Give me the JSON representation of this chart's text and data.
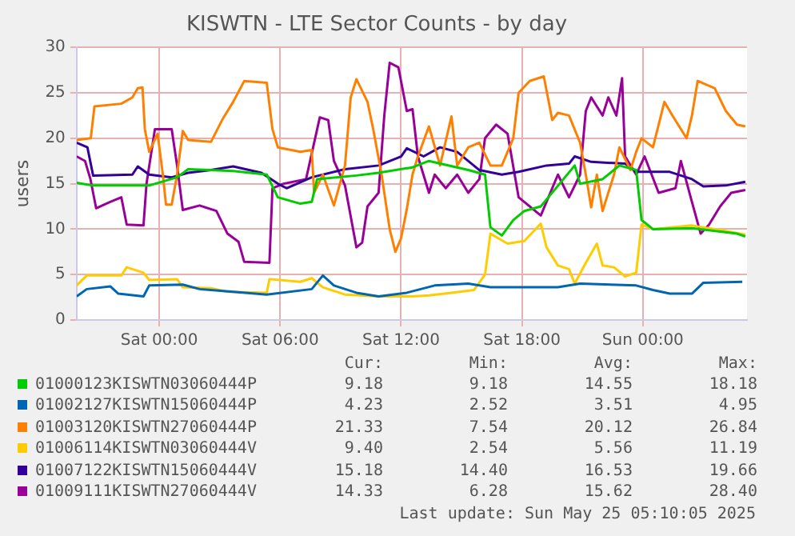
{
  "chart_data": {
    "type": "line",
    "title": "KISWTN - LTE Sector Counts - by day",
    "ylabel": "users",
    "xlim": [
      "2025-05-23T19:54",
      "2025-05-25T05:10"
    ],
    "xticks": [
      {
        "value": "2025-05-24T00:00",
        "label": "Sat 00:00"
      },
      {
        "value": "2025-05-24T06:00",
        "label": "Sat 06:00"
      },
      {
        "value": "2025-05-24T12:00",
        "label": "Sat 12:00"
      },
      {
        "value": "2025-05-24T18:00",
        "label": "Sat 18:00"
      },
      {
        "value": "2025-05-25T00:00",
        "label": "Sun 00:00"
      }
    ],
    "ylim": [
      0,
      30
    ],
    "yticks": [
      0,
      5,
      10,
      15,
      20,
      25,
      30
    ],
    "grid": true,
    "legend": "bottom",
    "marker": "none",
    "line_style": "solid",
    "series": [
      {
        "name": "01000123KISWTN03060444P",
        "color": "#00cc00",
        "x": [
          "2025-05-23T19:54",
          "2025-05-23T20:42",
          "2025-05-23T23:30",
          "2025-05-24T00:53",
          "2025-05-24T01:26",
          "2025-05-24T03:40",
          "2025-05-24T05:20",
          "2025-05-24T05:53",
          "2025-05-24T07:00",
          "2025-05-24T07:34",
          "2025-05-24T07:50",
          "2025-05-24T09:47",
          "2025-05-24T10:53",
          "2025-05-24T12:34",
          "2025-05-24T13:23",
          "2025-05-24T15:20",
          "2025-05-24T16:10",
          "2025-05-24T16:26",
          "2025-05-24T17:00",
          "2025-05-24T17:34",
          "2025-05-24T18:07",
          "2025-05-24T18:56",
          "2025-05-24T20:37",
          "2025-05-24T20:53",
          "2025-05-24T22:00",
          "2025-05-24T22:50",
          "2025-05-24T23:40",
          "2025-05-24T23:56",
          "2025-05-25T00:30",
          "2025-05-25T02:26",
          "2025-05-25T04:40",
          "2025-05-25T05:05"
        ],
        "values": [
          15.1,
          14.8,
          14.8,
          15.7,
          16.6,
          16.4,
          16.0,
          13.5,
          12.8,
          13.0,
          15.5,
          15.9,
          16.2,
          16.8,
          17.5,
          16.5,
          16.0,
          10.2,
          9.3,
          11.0,
          12.0,
          12.5,
          17.0,
          15.0,
          15.5,
          17.0,
          16.5,
          11.0,
          10.0,
          10.1,
          9.5,
          9.2
        ]
      },
      {
        "name": "01002127KISWTN15060444P",
        "color": "#0066b3",
        "x": [
          "2025-05-23T19:54",
          "2025-05-23T20:24",
          "2025-05-23T21:34",
          "2025-05-23T21:58",
          "2025-05-23T23:13",
          "2025-05-23T23:30",
          "2025-05-24T01:10",
          "2025-05-24T02:00",
          "2025-05-24T03:40",
          "2025-05-24T05:20",
          "2025-05-24T07:34",
          "2025-05-24T08:07",
          "2025-05-24T08:40",
          "2025-05-24T09:47",
          "2025-05-24T10:53",
          "2025-05-24T12:17",
          "2025-05-24T13:40",
          "2025-05-24T15:20",
          "2025-05-24T16:26",
          "2025-05-24T19:47",
          "2025-05-24T20:53",
          "2025-05-24T23:40",
          "2025-05-25T00:30",
          "2025-05-25T01:20",
          "2025-05-25T02:26",
          "2025-05-25T03:00",
          "2025-05-25T04:56"
        ],
        "values": [
          2.6,
          3.4,
          3.7,
          2.9,
          2.6,
          3.8,
          3.9,
          3.4,
          3.1,
          2.8,
          3.4,
          4.9,
          3.8,
          3.0,
          2.6,
          3.0,
          3.8,
          4.0,
          3.6,
          3.6,
          4.0,
          3.8,
          3.3,
          2.9,
          2.9,
          4.1,
          4.2
        ]
      },
      {
        "name": "01003120KISWTN27060444P",
        "color": "#ff8000",
        "x": [
          "2025-05-23T19:54",
          "2025-05-23T20:36",
          "2025-05-23T20:47",
          "2025-05-23T22:07",
          "2025-05-23T22:40",
          "2025-05-23T22:56",
          "2025-05-23T23:10",
          "2025-05-23T23:17",
          "2025-05-23T23:30",
          "2025-05-23T23:55",
          "2025-05-24T00:11",
          "2025-05-24T00:20",
          "2025-05-24T00:37",
          "2025-05-24T00:53",
          "2025-05-24T01:10",
          "2025-05-24T01:26",
          "2025-05-24T02:34",
          "2025-05-24T03:07",
          "2025-05-24T03:40",
          "2025-05-24T04:13",
          "2025-05-24T05:20",
          "2025-05-24T05:37",
          "2025-05-24T05:53",
          "2025-05-24T07:00",
          "2025-05-24T07:34",
          "2025-05-24T07:41",
          "2025-05-24T08:07",
          "2025-05-24T08:40",
          "2025-05-24T09:13",
          "2025-05-24T09:30",
          "2025-05-24T09:47",
          "2025-05-24T10:20",
          "2025-05-24T10:37",
          "2025-05-24T11:02",
          "2025-05-24T11:26",
          "2025-05-24T11:43",
          "2025-05-24T12:00",
          "2025-05-24T12:17",
          "2025-05-24T12:34",
          "2025-05-24T12:50",
          "2025-05-24T13:23",
          "2025-05-24T13:56",
          "2025-05-24T14:30",
          "2025-05-24T14:47",
          "2025-05-24T15:20",
          "2025-05-24T15:53",
          "2025-05-24T16:26",
          "2025-05-24T17:00",
          "2025-05-24T17:34",
          "2025-05-24T17:50",
          "2025-05-24T18:23",
          "2025-05-24T19:05",
          "2025-05-24T19:30",
          "2025-05-24T19:47",
          "2025-05-24T20:20",
          "2025-05-24T20:53",
          "2025-05-24T21:10",
          "2025-05-24T21:26",
          "2025-05-24T21:43",
          "2025-05-24T22:00",
          "2025-05-24T22:34",
          "2025-05-24T22:50",
          "2025-05-24T23:23",
          "2025-05-24T23:40",
          "2025-05-24T23:56",
          "2025-05-25T00:30",
          "2025-05-25T01:04",
          "2025-05-25T01:28",
          "2025-05-25T02:10",
          "2025-05-25T02:26",
          "2025-05-25T02:43",
          "2025-05-25T03:34",
          "2025-05-25T04:07",
          "2025-05-25T04:40",
          "2025-05-25T05:05"
        ],
        "values": [
          19.8,
          20.0,
          23.5,
          23.8,
          24.5,
          25.5,
          25.6,
          21.0,
          18.5,
          20.5,
          15.9,
          12.7,
          12.7,
          16.0,
          20.8,
          19.8,
          19.6,
          22.0,
          24.0,
          26.3,
          26.1,
          21.0,
          19.0,
          18.5,
          18.7,
          14.0,
          16.0,
          12.6,
          17.0,
          24.5,
          26.5,
          24.0,
          21.0,
          16.0,
          10.0,
          7.5,
          9.0,
          12.2,
          16.0,
          18.0,
          21.3,
          17.0,
          22.4,
          17.0,
          19.0,
          19.5,
          17.0,
          17.0,
          20.0,
          25.0,
          26.3,
          26.8,
          22.0,
          22.8,
          22.5,
          19.5,
          16.0,
          12.4,
          16.0,
          12.0,
          16.0,
          19.0,
          16.5,
          18.5,
          20.0,
          19.0,
          24.0,
          22.5,
          20.0,
          22.5,
          26.3,
          25.5,
          23.0,
          21.5,
          21.3
        ]
      },
      {
        "name": "01006114KISWTN03060444V",
        "color": "#ffcc00",
        "x": [
          "2025-05-23T19:54",
          "2025-05-23T20:24",
          "2025-05-23T22:07",
          "2025-05-23T22:23",
          "2025-05-23T23:13",
          "2025-05-23T23:30",
          "2025-05-24T00:53",
          "2025-05-24T01:10",
          "2025-05-24T02:34",
          "2025-05-24T03:23",
          "2025-05-24T05:20",
          "2025-05-24T05:28",
          "2025-05-24T07:00",
          "2025-05-24T07:34",
          "2025-05-24T08:07",
          "2025-05-24T09:13",
          "2025-05-24T10:53",
          "2025-05-24T12:34",
          "2025-05-24T13:23",
          "2025-05-24T14:30",
          "2025-05-24T15:37",
          "2025-05-24T16:10",
          "2025-05-24T16:26",
          "2025-05-24T17:17",
          "2025-05-24T18:07",
          "2025-05-24T18:56",
          "2025-05-24T19:13",
          "2025-05-24T19:47",
          "2025-05-24T20:20",
          "2025-05-24T20:37",
          "2025-05-24T21:10",
          "2025-05-24T21:43",
          "2025-05-24T22:00",
          "2025-05-24T22:34",
          "2025-05-24T23:07",
          "2025-05-24T23:40",
          "2025-05-24T23:56",
          "2025-05-25T00:30",
          "2025-05-25T02:26",
          "2025-05-25T03:50",
          "2025-05-25T05:05"
        ],
        "values": [
          3.8,
          4.9,
          4.9,
          5.8,
          5.2,
          4.4,
          4.5,
          3.6,
          3.5,
          3.1,
          3.0,
          4.5,
          4.2,
          4.6,
          3.6,
          2.8,
          2.6,
          2.6,
          2.7,
          3.0,
          3.3,
          5.0,
          9.5,
          8.4,
          8.7,
          10.6,
          8.0,
          6.0,
          5.6,
          4.0,
          6.3,
          8.4,
          6.0,
          5.8,
          4.8,
          5.2,
          10.5,
          10.0,
          10.4,
          9.9,
          9.4
        ]
      },
      {
        "name": "01007122KISWTN15060444V",
        "color": "#330099",
        "x": [
          "2025-05-23T19:54",
          "2025-05-23T20:26",
          "2025-05-23T20:43",
          "2025-05-23T22:40",
          "2025-05-23T22:56",
          "2025-05-23T23:30",
          "2025-05-24T00:37",
          "2025-05-24T01:26",
          "2025-05-24T02:34",
          "2025-05-24T03:40",
          "2025-05-24T05:04",
          "2025-05-24T05:53",
          "2025-05-24T06:19",
          "2025-05-24T07:34",
          "2025-05-24T09:13",
          "2025-05-24T10:53",
          "2025-05-24T12:00",
          "2025-05-24T12:17",
          "2025-05-24T13:07",
          "2025-05-24T13:56",
          "2025-05-24T14:47",
          "2025-05-24T15:53",
          "2025-05-24T17:00",
          "2025-05-24T17:50",
          "2025-05-24T19:13",
          "2025-05-24T20:20",
          "2025-05-24T20:37",
          "2025-05-24T21:26",
          "2025-05-24T23:07",
          "2025-05-24T23:40",
          "2025-05-25T01:20",
          "2025-05-25T02:26",
          "2025-05-25T03:00",
          "2025-05-25T04:07",
          "2025-05-25T05:05"
        ],
        "values": [
          19.5,
          19.0,
          15.9,
          16.0,
          16.9,
          16.0,
          15.7,
          16.2,
          16.5,
          16.9,
          16.2,
          15.0,
          14.5,
          15.7,
          16.6,
          17.0,
          18.0,
          18.9,
          18.0,
          19.0,
          18.5,
          16.5,
          16.0,
          16.3,
          17.0,
          17.2,
          18.0,
          17.4,
          17.2,
          16.3,
          16.3,
          15.5,
          14.7,
          14.8,
          15.2
        ]
      },
      {
        "name": "01009111KISWTN27060444V",
        "color": "#990099",
        "x": [
          "2025-05-23T19:54",
          "2025-05-23T20:19",
          "2025-05-23T20:35",
          "2025-05-23T20:52",
          "2025-05-23T21:34",
          "2025-05-23T22:07",
          "2025-05-23T22:23",
          "2025-05-23T23:13",
          "2025-05-23T23:22",
          "2025-05-23T23:47",
          "2025-05-24T00:37",
          "2025-05-24T00:53",
          "2025-05-24T01:10",
          "2025-05-24T02:00",
          "2025-05-24T02:50",
          "2025-05-24T03:23",
          "2025-05-24T03:56",
          "2025-05-24T04:13",
          "2025-05-24T05:28",
          "2025-05-24T05:37",
          "2025-05-24T06:10",
          "2025-05-24T07:17",
          "2025-05-24T07:58",
          "2025-05-24T08:23",
          "2025-05-24T08:40",
          "2025-05-24T09:13",
          "2025-05-24T09:47",
          "2025-05-24T10:04",
          "2025-05-24T10:20",
          "2025-05-24T10:53",
          "2025-05-24T11:10",
          "2025-05-24T11:26",
          "2025-05-24T11:52",
          "2025-05-24T12:17",
          "2025-05-24T12:34",
          "2025-05-24T12:50",
          "2025-05-24T13:23",
          "2025-05-24T13:40",
          "2025-05-24T14:13",
          "2025-05-24T14:47",
          "2025-05-24T15:20",
          "2025-05-24T15:53",
          "2025-05-24T16:10",
          "2025-05-24T16:43",
          "2025-05-24T17:17",
          "2025-05-24T17:50",
          "2025-05-24T18:56",
          "2025-05-24T19:13",
          "2025-05-24T19:47",
          "2025-05-24T20:20",
          "2025-05-24T20:53",
          "2025-05-24T21:10",
          "2025-05-24T21:26",
          "2025-05-24T22:00",
          "2025-05-24T22:17",
          "2025-05-24T22:41",
          "2025-05-24T22:58",
          "2025-05-24T23:07",
          "2025-05-24T23:40",
          "2025-05-25T00:05",
          "2025-05-25T00:47",
          "2025-05-25T01:37",
          "2025-05-25T01:53",
          "2025-05-25T02:26",
          "2025-05-25T02:52",
          "2025-05-25T03:17",
          "2025-05-25T03:50",
          "2025-05-25T04:23",
          "2025-05-25T05:05"
        ],
        "values": [
          18.0,
          17.5,
          15.5,
          12.3,
          13.0,
          13.5,
          10.5,
          10.4,
          15.0,
          21.0,
          21.0,
          17.0,
          12.1,
          12.6,
          12.0,
          9.5,
          8.6,
          6.4,
          6.3,
          14.5,
          15.0,
          15.5,
          22.3,
          22.0,
          17.5,
          14.8,
          8.0,
          8.5,
          12.5,
          14.0,
          22.5,
          28.3,
          27.8,
          23.0,
          23.2,
          18.0,
          14.0,
          16.0,
          14.5,
          16.0,
          14.0,
          15.5,
          20.0,
          21.5,
          20.5,
          13.5,
          11.5,
          13.0,
          16.0,
          13.5,
          16.0,
          23.0,
          24.5,
          22.5,
          24.5,
          22.5,
          26.6,
          18.0,
          16.0,
          18.0,
          14.0,
          14.5,
          17.5,
          13.0,
          9.5,
          10.5,
          12.5,
          14.0,
          14.3
        ]
      }
    ],
    "annotations": [
      "Cur:",
      "Min:",
      "Avg:",
      "Max:",
      "9.18",
      "9.18",
      "14.55",
      "18.18",
      "4.23",
      "2.52",
      "3.51",
      "4.95",
      "21.33",
      "7.54",
      "20.12",
      "26.84",
      "9.40",
      "2.54",
      "5.56",
      "11.19",
      "15.18",
      "14.40",
      "16.53",
      "19.66",
      "14.33",
      "6.28",
      "15.62",
      "28.40",
      "Last update: Sun May 25 05:10:05 2025"
    ]
  }
}
